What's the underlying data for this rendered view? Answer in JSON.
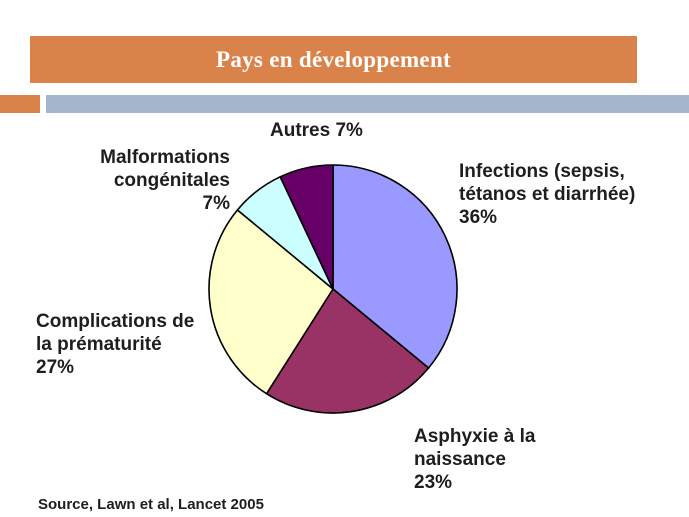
{
  "colors": {
    "title_band": "#d9834a",
    "accent_orange": "#d9834a",
    "accent_blue": "#a3b6cb"
  },
  "chart_data": {
    "type": "pie",
    "title": "Pays en développement",
    "slices": [
      {
        "label_lines": [
          "Infections (sepsis,",
          "tétanos et diarrhée)",
          "36%"
        ],
        "value": 36,
        "color": "#9999ff"
      },
      {
        "label_lines": [
          "Asphyxie à la",
          "naissance",
          "23%"
        ],
        "value": 23,
        "color": "#993366"
      },
      {
        "label_lines": [
          "Complications de",
          "la prématurité",
          "27%"
        ],
        "value": 27,
        "color": "#ffffcc"
      },
      {
        "label_lines": [
          "Malformations",
          "congénitales",
          "7%"
        ],
        "value": 7,
        "color": "#ccffff"
      },
      {
        "label_lines": [
          "Autres 7%"
        ],
        "value": 7,
        "color": "#660066"
      }
    ],
    "source": "Source, Lawn et al, Lancet 2005"
  }
}
